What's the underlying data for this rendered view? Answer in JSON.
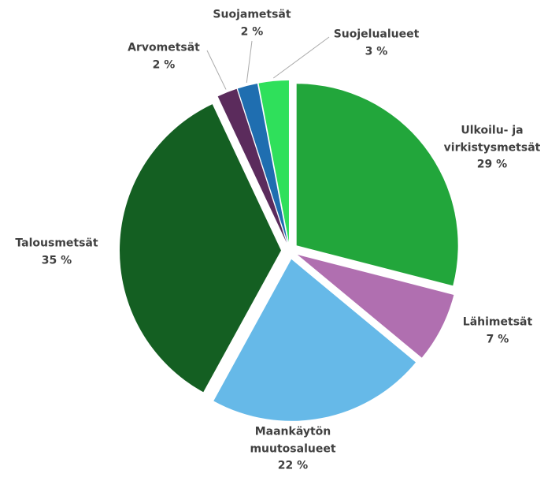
{
  "chart_data": {
    "type": "pie",
    "categories": [
      "Ulkoilu- ja virkistysmetsät",
      "Lähimetsät",
      "Maankäytön muutosalueet",
      "Talousmetsät",
      "Arvometsät",
      "Suojametsät",
      "Suojelualueet"
    ],
    "values": [
      29,
      7,
      22,
      35,
      2,
      2,
      3
    ],
    "value_labels": [
      "29 %",
      "7 %",
      "22 %",
      "35 %",
      "2 %",
      "2 %",
      "3 %"
    ],
    "colors": [
      "#22a63b",
      "#b06fb0",
      "#66b9e8",
      "#145f22",
      "#5b2b5c",
      "#1f6eb0",
      "#2fe05b"
    ]
  }
}
